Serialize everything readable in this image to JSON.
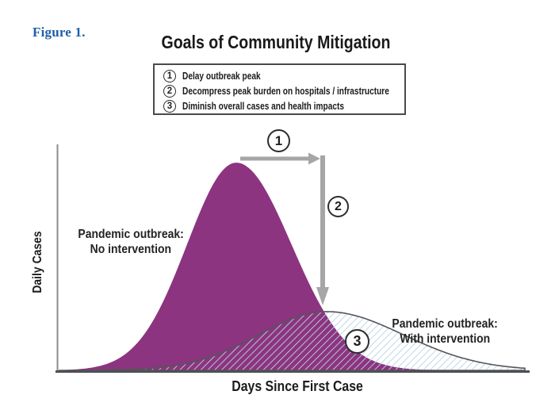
{
  "figure_label": "Figure 1.",
  "legend": {
    "items": [
      {
        "number": "1",
        "text": "Delay outbreak peak"
      },
      {
        "number": "2",
        "text": "Decompress peak burden on hospitals / infrastructure"
      },
      {
        "number": "3",
        "text": "Diminish overall cases and health impacts"
      }
    ]
  },
  "curve_labels": {
    "no_intervention": {
      "line1": "Pandemic outbreak:",
      "line2": "No intervention"
    },
    "with_intervention": {
      "line1": "Pandemic outbreak:",
      "line2": "With intervention"
    }
  },
  "chart_data": {
    "type": "area",
    "title": "Goals of Community Mitigation",
    "xlabel": "Days Since First Case",
    "ylabel": "Daily Cases",
    "x_ticks": [],
    "y_ticks": [],
    "axes_quantitative": false,
    "grid": false,
    "series": [
      {
        "name": "Pandemic outbreak: No intervention",
        "shape": "bell",
        "peak_x_frac": 0.379,
        "peak_height_frac": 0.919,
        "sigma_left_frac": 0.104,
        "sigma_right_frac": 0.117,
        "pattern": "solid"
      },
      {
        "name": "Pandemic outbreak: With intervention",
        "shape": "bell",
        "peak_x_frac": 0.57,
        "peak_height_frac": 0.26,
        "sigma_left_frac": 0.143,
        "sigma_right_frac": 0.163,
        "pattern": "diagonal-hatch"
      }
    ],
    "annotations": [
      {
        "label": "1",
        "meaning": "Delay outbreak peak",
        "arrow": "horizontal-right-from-peak"
      },
      {
        "label": "2",
        "meaning": "Decompress peak burden on hospitals / infrastructure",
        "arrow": "vertical-down-to-flattened-peak"
      },
      {
        "label": "3",
        "meaning": "Diminish overall cases and health impacts",
        "arrow": "none"
      }
    ]
  },
  "colors": {
    "no_intervention_fill": "#8C3480",
    "hatch_line": "#B9D4E2",
    "curve_outline": "#54555A",
    "arrow_gray": "#A6A6A8",
    "x_axis": "#4F5054",
    "y_axis": "#8A8C8F",
    "figure_label_blue": "#1D5FA9",
    "text_dark": "#1F1F1F"
  }
}
